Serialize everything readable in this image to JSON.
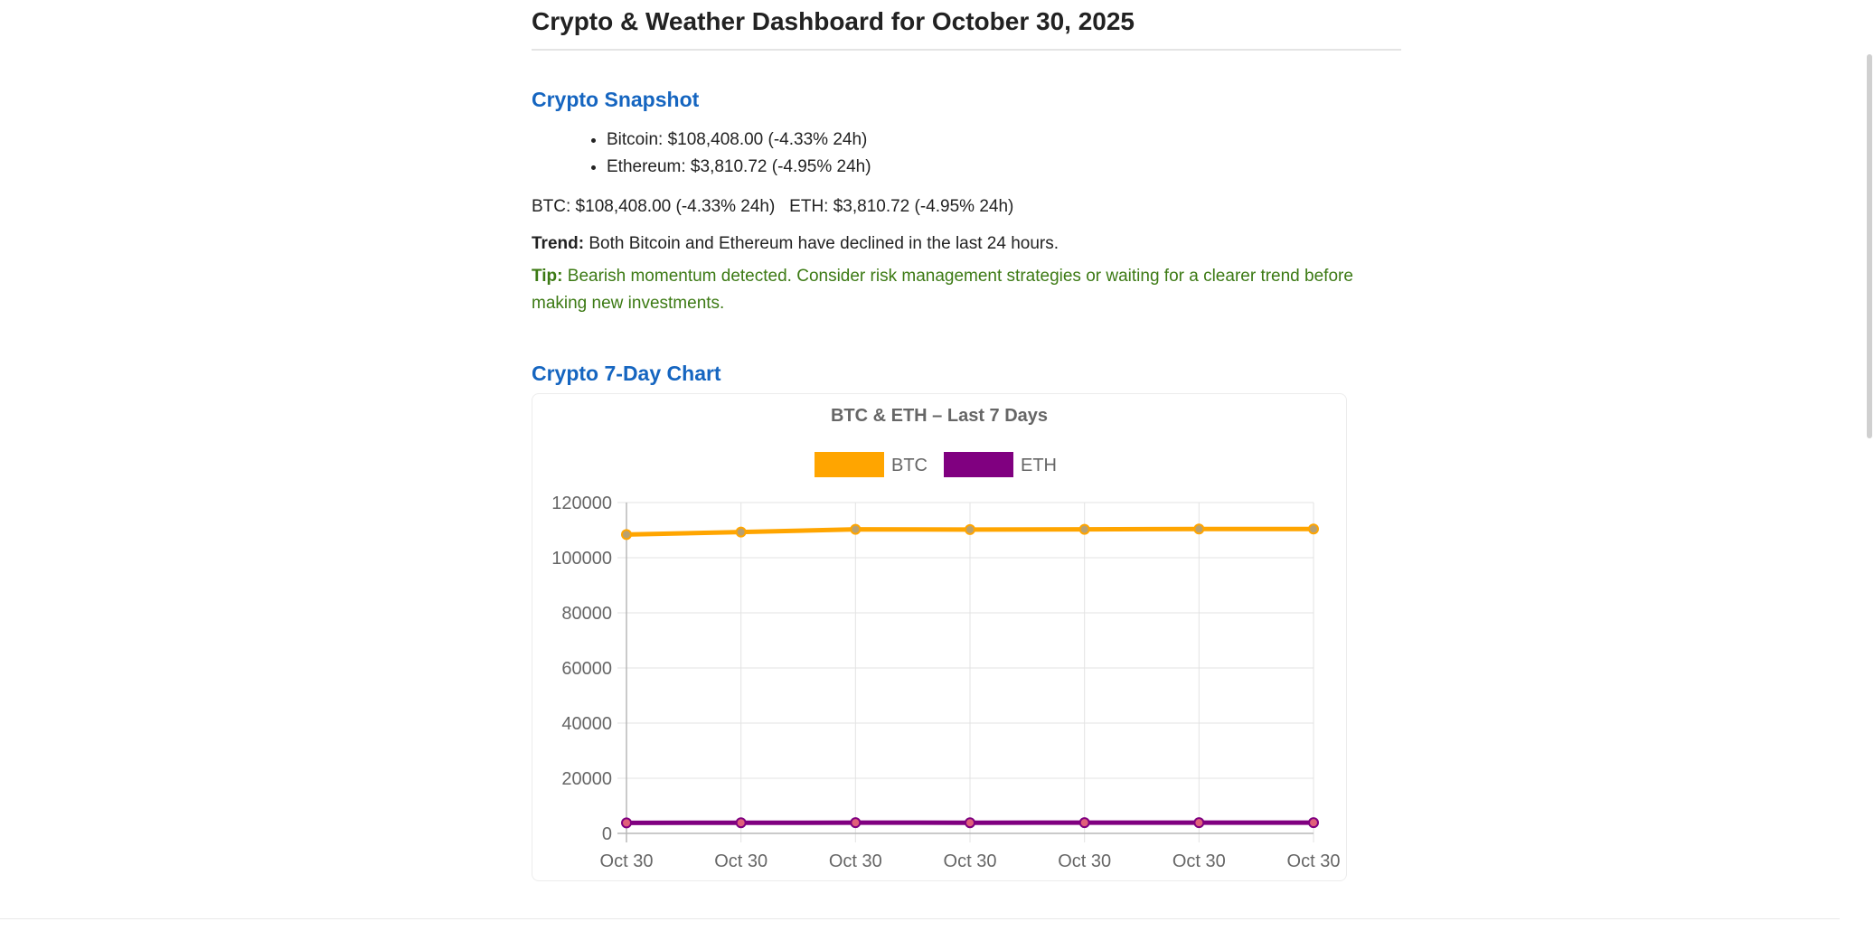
{
  "page": {
    "title": "Crypto & Weather Dashboard for October 30, 2025"
  },
  "crypto": {
    "heading": "Crypto Snapshot",
    "items": [
      "Bitcoin: $108,408.00 (-4.33% 24h)",
      "Ethereum: $3,810.72 (-4.95% 24h)"
    ],
    "summary": "BTC: $108,408.00 (-4.33% 24h)   ETH: $3,810.72 (-4.95% 24h)",
    "trend_label": "Trend:",
    "trend_text": "Both Bitcoin and Ethereum have declined in the last 24 hours.",
    "tip_label": "Tip:",
    "tip_text": "Bearish momentum detected. Consider risk management strategies or waiting for a clearer trend before making new investments."
  },
  "chart_section": {
    "heading": "Crypto 7-Day Chart"
  },
  "colors": {
    "btc": "#ffa500",
    "eth": "#800080",
    "heading": "#1565c0",
    "tip": "#3c7a14"
  },
  "chart_data": {
    "type": "line",
    "title": "BTC & ETH – Last 7 Days",
    "categories": [
      "Oct 30",
      "Oct 30",
      "Oct 30",
      "Oct 30",
      "Oct 30",
      "Oct 30",
      "Oct 30"
    ],
    "series": [
      {
        "name": "BTC",
        "color": "#ffa500",
        "values": [
          108400,
          109300,
          110300,
          110200,
          110300,
          110400,
          110400
        ]
      },
      {
        "name": "ETH",
        "color": "#800080",
        "values": [
          3810,
          3860,
          3880,
          3870,
          3880,
          3880,
          3880
        ]
      }
    ],
    "yticks": [
      0,
      20000,
      40000,
      60000,
      80000,
      100000,
      120000
    ],
    "ylim": [
      0,
      120000
    ],
    "grid": true,
    "legend": "top-center",
    "xlabel": "",
    "ylabel": ""
  }
}
